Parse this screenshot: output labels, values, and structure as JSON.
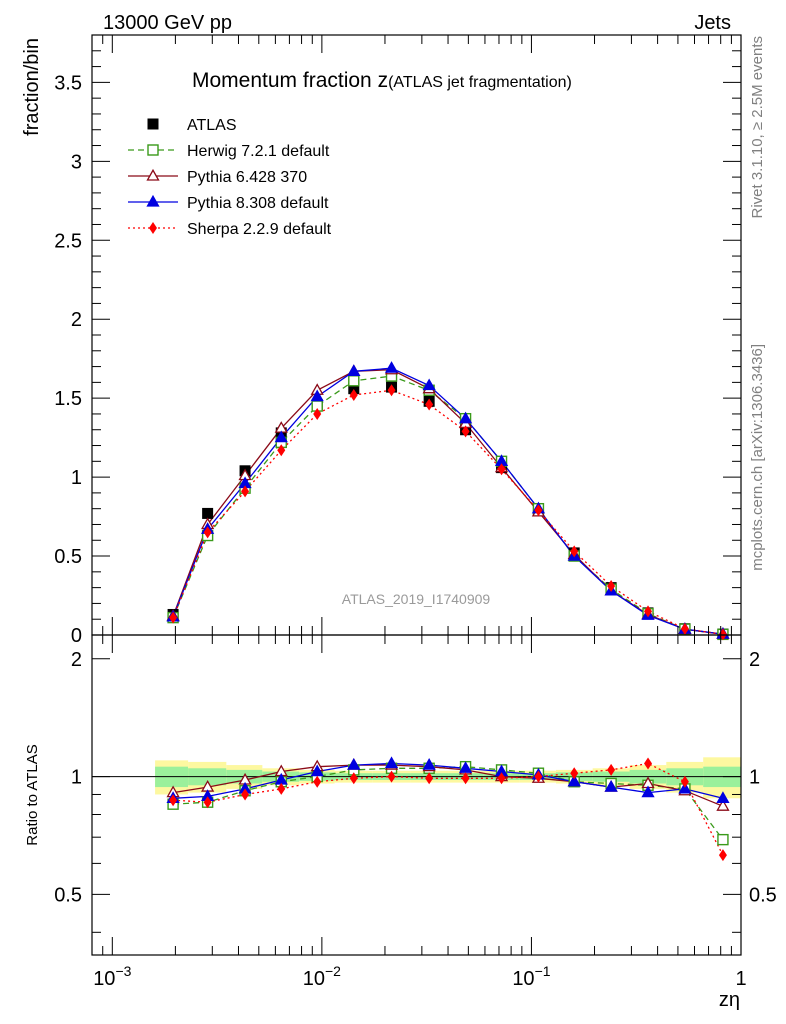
{
  "header": {
    "left": "13000 GeV pp",
    "right": "Jets"
  },
  "side": {
    "rivet": "Rivet 3.1.10, ≥ 2.5M events",
    "source": "mcplots.cern.ch [arXiv:1306.3436]"
  },
  "chart_data": {
    "type": "scatter",
    "title_main": "Momentum fraction z",
    "title_sub": "(ATLAS jet fragmentation)",
    "ylabel": "fraction/bin",
    "ratio_ylabel": "Ratio to ATLAS",
    "xlabel": "zη",
    "watermark": "ATLAS_2019_I1740909",
    "xscale": "log",
    "xlim": [
      0.0008,
      1
    ],
    "ylim": [
      0,
      3.8
    ],
    "ratio_ylim": [
      0.35,
      2.3
    ],
    "xticks": [
      {
        "v": 0.001,
        "l": "10−3"
      },
      {
        "v": 0.01,
        "l": "10−2"
      },
      {
        "v": 0.1,
        "l": "10−1"
      },
      {
        "v": 1,
        "l": "1"
      }
    ],
    "yticks": [
      {
        "v": 0,
        "l": "0"
      },
      {
        "v": 0.5,
        "l": "0.5"
      },
      {
        "v": 1,
        "l": "1"
      },
      {
        "v": 1.5,
        "l": "1.5"
      },
      {
        "v": 2,
        "l": "2"
      },
      {
        "v": 2.5,
        "l": "2.5"
      },
      {
        "v": 3,
        "l": "3"
      },
      {
        "v": 3.5,
        "l": "3.5"
      }
    ],
    "ratio_yticks": [
      {
        "v": 0.5,
        "l": "0.5"
      },
      {
        "v": 1,
        "l": "1"
      },
      {
        "v": 2,
        "l": "2"
      }
    ],
    "x": [
      0.00195,
      0.00285,
      0.0043,
      0.0064,
      0.0095,
      0.0142,
      0.0215,
      0.0325,
      0.0485,
      0.072,
      0.108,
      0.16,
      0.24,
      0.36,
      0.54,
      0.82
    ],
    "band_edges": [
      0.0016,
      0.0023,
      0.0035,
      0.0052,
      0.0078,
      0.0115,
      0.0175,
      0.0265,
      0.04,
      0.059,
      0.088,
      0.131,
      0.196,
      0.294,
      0.44,
      0.66,
      1.0
    ],
    "band_inner": [
      0.06,
      0.05,
      0.04,
      0.03,
      0.025,
      0.02,
      0.02,
      0.02,
      0.02,
      0.02,
      0.02,
      0.025,
      0.03,
      0.04,
      0.05,
      0.06
    ],
    "band_outer": [
      0.1,
      0.09,
      0.07,
      0.05,
      0.04,
      0.035,
      0.035,
      0.035,
      0.035,
      0.035,
      0.035,
      0.04,
      0.05,
      0.07,
      0.09,
      0.12
    ],
    "series": [
      {
        "name": "ATLAS",
        "color": "#000000",
        "marker": "square-filled",
        "dash": "none",
        "values": [
          0.13,
          0.77,
          1.04,
          1.28,
          1.46,
          1.56,
          1.57,
          1.48,
          1.3,
          1.06,
          0.79,
          0.52,
          0.3,
          0.14,
          0.04,
          0.006
        ]
      },
      {
        "name": "Herwig 7.2.1 default",
        "color": "#3a9a1a",
        "marker": "square-open",
        "dash": "6,4",
        "values": [
          0.11,
          0.63,
          0.93,
          1.22,
          1.45,
          1.61,
          1.64,
          1.55,
          1.37,
          1.1,
          0.8,
          0.5,
          0.29,
          0.135,
          0.037,
          0.004
        ]
      },
      {
        "name": "Pythia 6.428 370",
        "color": "#8b0a18",
        "marker": "triangle-open",
        "dash": "none",
        "values": [
          0.12,
          0.7,
          1.01,
          1.31,
          1.55,
          1.67,
          1.68,
          1.56,
          1.34,
          1.06,
          0.78,
          0.51,
          0.28,
          0.13,
          0.036,
          0.005
        ]
      },
      {
        "name": "Pythia 8.308 default",
        "color": "#0000e0",
        "marker": "triangle-filled",
        "dash": "none",
        "values": [
          0.115,
          0.67,
          0.96,
          1.25,
          1.51,
          1.67,
          1.69,
          1.58,
          1.37,
          1.1,
          0.8,
          0.5,
          0.28,
          0.125,
          0.037,
          0.0055
        ]
      },
      {
        "name": "Sherpa 2.2.9 default",
        "color": "#ff0000",
        "marker": "diamond-filled",
        "dash": "2,3",
        "values": [
          0.11,
          0.65,
          0.91,
          1.17,
          1.4,
          1.52,
          1.55,
          1.46,
          1.29,
          1.05,
          0.79,
          0.53,
          0.31,
          0.15,
          0.039,
          0.004
        ]
      }
    ],
    "ratios": [
      [
        1,
        1,
        1,
        1,
        1,
        1,
        1,
        1,
        1,
        1,
        1,
        1,
        1,
        1,
        1,
        1
      ],
      [
        0.85,
        0.86,
        0.92,
        0.97,
        1.0,
        1.04,
        1.05,
        1.05,
        1.06,
        1.04,
        1.02,
        0.97,
        0.96,
        0.95,
        0.93,
        0.69
      ],
      [
        0.91,
        0.94,
        0.98,
        1.03,
        1.06,
        1.07,
        1.07,
        1.06,
        1.04,
        1.0,
        0.99,
        0.97,
        0.94,
        0.96,
        0.92,
        0.84
      ],
      [
        0.88,
        0.89,
        0.93,
        0.98,
        1.03,
        1.07,
        1.08,
        1.07,
        1.05,
        1.03,
        1.01,
        0.97,
        0.94,
        0.91,
        0.93,
        0.88
      ],
      [
        0.87,
        0.86,
        0.9,
        0.93,
        0.97,
        0.99,
        1.0,
        0.99,
        0.99,
        0.99,
        1.0,
        1.02,
        1.04,
        1.08,
        0.97,
        0.63
      ]
    ]
  }
}
